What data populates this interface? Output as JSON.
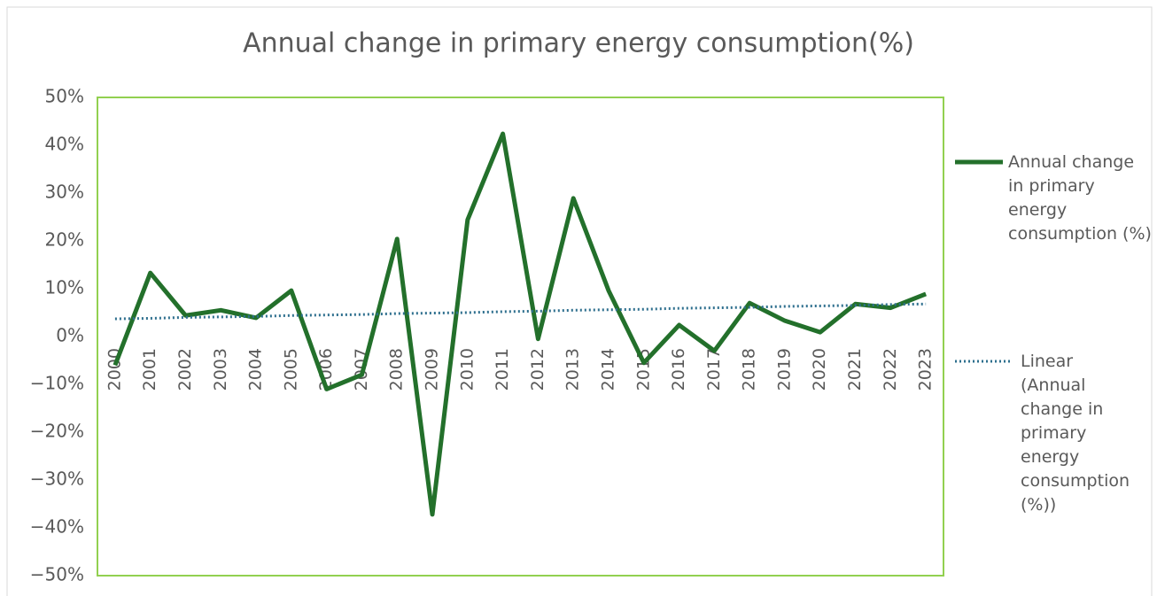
{
  "chart_data": {
    "type": "line",
    "title": "Annual change in primary energy consumption(%)",
    "categories": [
      "2000",
      "2001",
      "2002",
      "2003",
      "2004",
      "2005",
      "2006",
      "2007",
      "2008",
      "2009",
      "2010",
      "2011",
      "2012",
      "2013",
      "2014",
      "2015",
      "2016",
      "2017",
      "2018",
      "2019",
      "2020",
      "2021",
      "2022",
      "2023"
    ],
    "series": [
      {
        "name": "Annual change in primary energy consumption (%)",
        "color": "#23702b",
        "style": "solid",
        "values": [
          -6,
          13.3,
          4.4,
          5.5,
          3.9,
          9.6,
          -11,
          -8,
          20.4,
          -37.2,
          24.4,
          42.4,
          -0.5,
          28.9,
          9.6,
          -5.5,
          2.4,
          -3,
          7,
          3.3,
          0.9,
          6.8,
          6,
          8.9
        ]
      },
      {
        "name": "Linear (Annual change in primary energy consumption (%))",
        "color": "#2e6f8e",
        "style": "dotted",
        "values": [
          3.7,
          3.8,
          4.0,
          4.1,
          4.2,
          4.4,
          4.5,
          4.6,
          4.8,
          4.9,
          5.0,
          5.2,
          5.3,
          5.5,
          5.6,
          5.7,
          5.9,
          6.0,
          6.1,
          6.3,
          6.4,
          6.5,
          6.7,
          6.8
        ]
      }
    ],
    "ylim": [
      -50,
      50
    ],
    "yticks": [
      {
        "value": -50,
        "label": "−50%"
      },
      {
        "value": -40,
        "label": "−40%"
      },
      {
        "value": -30,
        "label": "−30%"
      },
      {
        "value": -20,
        "label": "−20%"
      },
      {
        "value": -10,
        "label": "−10%"
      },
      {
        "value": 0,
        "label": "0%"
      },
      {
        "value": 10,
        "label": "10%"
      },
      {
        "value": 20,
        "label": "20%"
      },
      {
        "value": 30,
        "label": "30%"
      },
      {
        "value": 40,
        "label": "40%"
      },
      {
        "value": 50,
        "label": "50%"
      }
    ],
    "legend": "right"
  }
}
